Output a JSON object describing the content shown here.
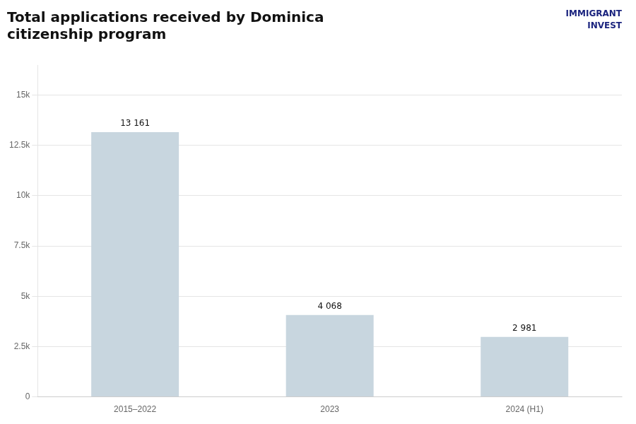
{
  "chart_data": {
    "type": "bar",
    "title": [
      "Total applications received by Dominica",
      "citizenship program"
    ],
    "categories": [
      "2015–2022",
      "2023",
      "2024 (H1)"
    ],
    "values": [
      13161,
      4068,
      2981
    ],
    "value_labels": [
      "13 161",
      "4 068",
      "2 981"
    ],
    "data_labels": true,
    "color": "#c8d6df",
    "ylim": [
      0,
      16500
    ],
    "yticks": [
      0,
      {
        "value": 2500,
        "label": "2.5k"
      },
      {
        "value": 5000,
        "label": "5k"
      },
      {
        "value": 7500,
        "label": "7.5k"
      },
      {
        "value": 10000,
        "label": "10k"
      },
      {
        "value": 12500,
        "label": "12.5k"
      },
      {
        "value": 15000,
        "label": "15k"
      }
    ],
    "grid": true,
    "annotations": [
      "IMMIGRANT\nINVEST"
    ]
  }
}
